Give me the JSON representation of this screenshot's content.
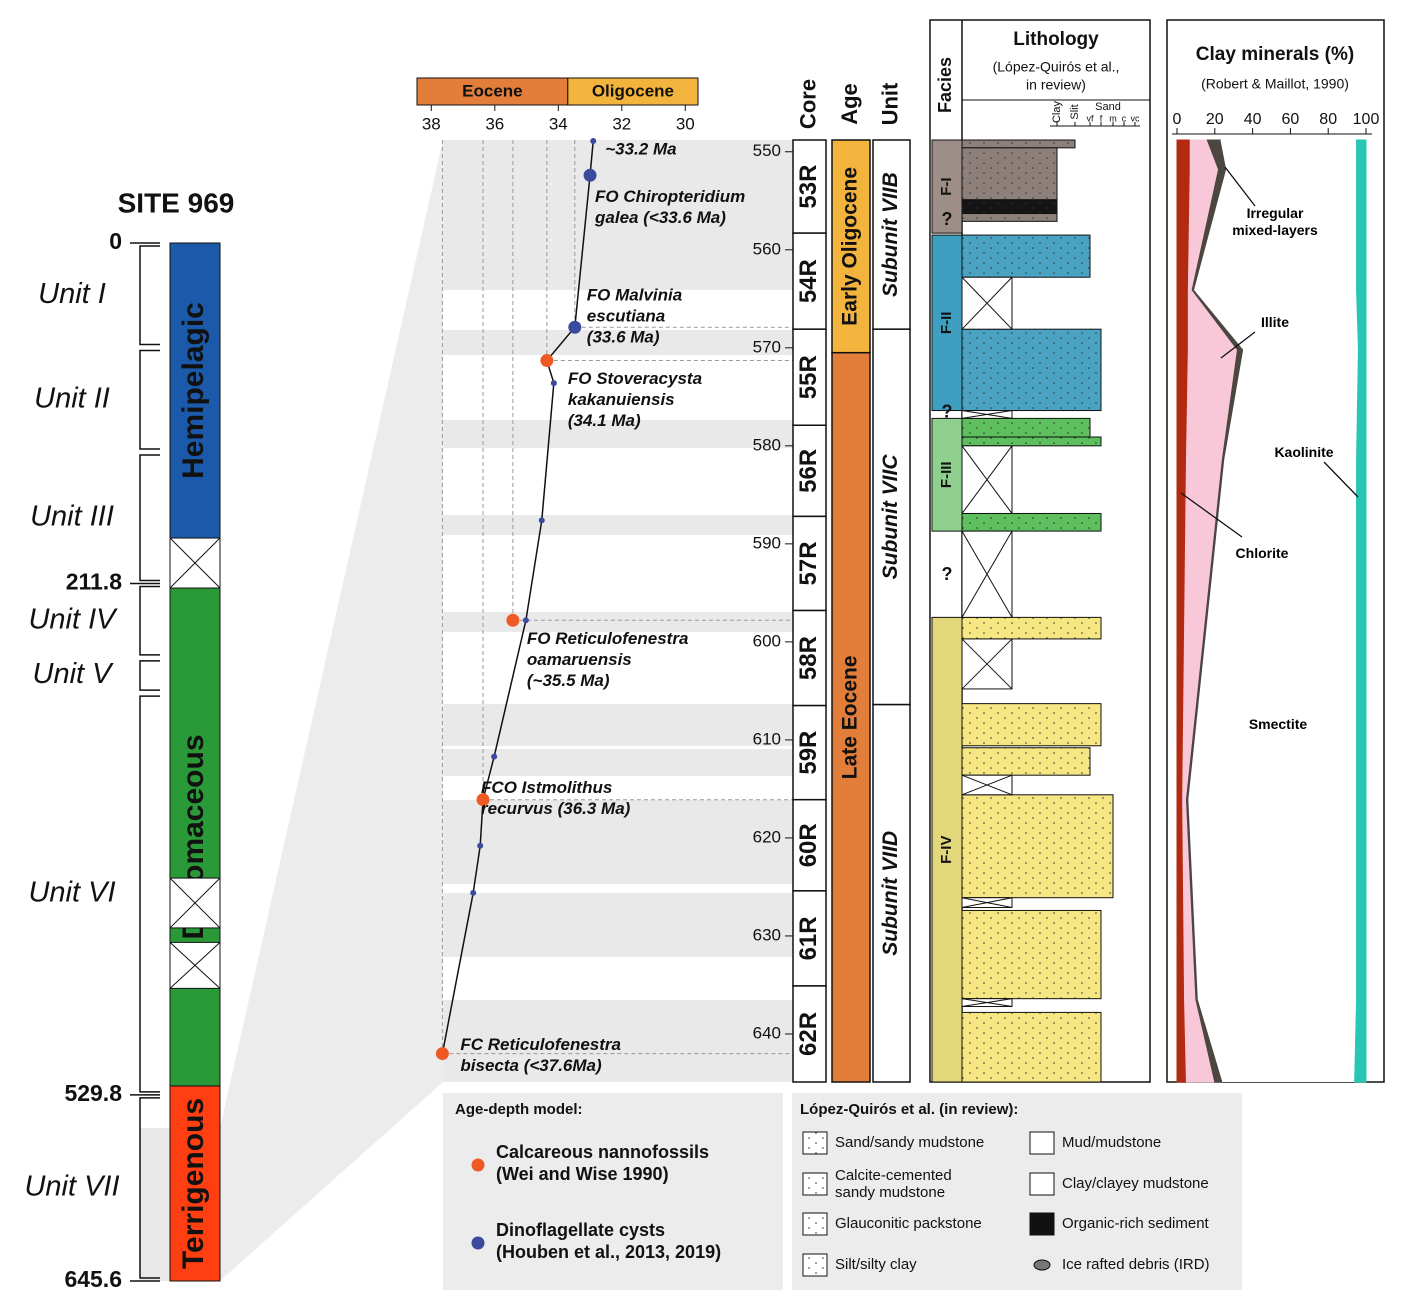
{
  "site": {
    "title": "SITE 969",
    "ylim": [
      0,
      645.6
    ],
    "depth_ticks": [
      0,
      211.8,
      529.8,
      645.6
    ],
    "units": [
      {
        "name": "Unit I",
        "top": 0,
        "bottom": 65
      },
      {
        "name": "Unit II",
        "top": 65,
        "bottom": 130
      },
      {
        "name": "Unit III",
        "top": 130,
        "bottom": 211.8
      },
      {
        "name": "Unit IV",
        "top": 211.8,
        "bottom": 258
      },
      {
        "name": "Unit V",
        "top": 258,
        "bottom": 280
      },
      {
        "name": "Unit VI",
        "top": 280,
        "bottom": 529.8
      },
      {
        "name": "Unit VII",
        "top": 529.8,
        "bottom": 645.6
      }
    ],
    "column": [
      {
        "name": "Hemipelagic",
        "top": 0,
        "bottom": 183.5,
        "color": "#1b5aab"
      },
      {
        "name": "Diatomaceous",
        "top": 214.6,
        "bottom": 524.3,
        "color": "#2a9a38"
      },
      {
        "name": "Terrigenous",
        "top": 524.3,
        "bottom": 645.6,
        "color": "#ff3e12"
      }
    ],
    "no_recovery": [
      {
        "top": 183.5,
        "bottom": 214.6
      },
      {
        "top": 395,
        "bottom": 426
      },
      {
        "top": 435,
        "bottom": 463.6
      }
    ]
  },
  "age_depth": {
    "epochs": [
      {
        "name": "Eocene",
        "from": 38.45,
        "to": 33.7,
        "color": "#e27d3a"
      },
      {
        "name": "Oligocene",
        "from": 33.7,
        "to": 29.6,
        "color": "#f3b43e"
      }
    ],
    "xlim": [
      38.45,
      29.6
    ],
    "xticks": [
      38,
      36,
      34,
      32,
      30
    ],
    "datums": [
      {
        "lines": [
          "~33.2 Ma"
        ],
        "age": 32.9,
        "depth": 548.9,
        "color": "#3b4a9c",
        "size": "small"
      },
      {
        "lines": [
          "FO Chiropteridium",
          "galea (<33.6 Ma)"
        ],
        "age": 33.0,
        "depth": 552.4,
        "color": "#3b4a9c",
        "size": "big"
      },
      {
        "lines": [
          "FO Malvinia",
          "escutiana",
          "(33.6 Ma)"
        ],
        "age": 33.48,
        "depth": 567.9,
        "color": "#3b4a9c",
        "size": "big"
      },
      {
        "lines": [
          "FO Stoveracysta",
          "kakanuiensis",
          "(34.1 Ma)"
        ],
        "age": 34.36,
        "depth": 571.3,
        "color": "#ef5a24",
        "size": "big"
      },
      {
        "lines": [
          "FO Reticulofenestra",
          "oamaruensis",
          "(~35.5 Ma)"
        ],
        "age": 35.43,
        "depth": 597.8,
        "color": "#ef5a24",
        "size": "big"
      },
      {
        "lines": [
          "FCO Istmolithus",
          "recurvus (36.3 Ma)"
        ],
        "age": 36.37,
        "depth": 616.1,
        "color": "#ef5a24",
        "size": "big"
      },
      {
        "lines": [
          "FC Reticulofenestra",
          "bisecta (<37.6Ma)"
        ],
        "age": 37.65,
        "depth": 642.0,
        "color": "#ef5a24",
        "size": "big"
      }
    ],
    "points": [
      {
        "age": 34.14,
        "depth": 573.6
      },
      {
        "age": 34.52,
        "depth": 587.6
      },
      {
        "age": 35.02,
        "depth": 597.8
      },
      {
        "age": 36.02,
        "depth": 611.7
      },
      {
        "age": 36.46,
        "depth": 620.8
      },
      {
        "age": 36.68,
        "depth": 625.6
      }
    ],
    "points_color": "#3b4a9c",
    "model_line": {
      "ages": [
        32.9,
        33.0,
        33.48,
        34.36,
        34.14,
        34.52,
        35.02,
        36.02,
        36.37,
        36.46,
        36.68,
        37.65
      ],
      "depths": [
        548.9,
        552.4,
        567.9,
        571.3,
        573.6,
        587.6,
        597.8,
        611.7,
        616.1,
        620.8,
        625.6,
        642.0
      ]
    }
  },
  "core_log": {
    "headers": [
      "Core",
      "Age",
      "Unit"
    ],
    "ylim": [
      548.8,
      644.9
    ],
    "yticks": [
      550,
      560,
      570,
      580,
      590,
      600,
      610,
      620,
      630,
      640
    ],
    "cores": [
      {
        "name": "53R",
        "top": 548.8,
        "bottom": 558.3
      },
      {
        "name": "54R",
        "top": 558.3,
        "bottom": 568.1
      },
      {
        "name": "55R",
        "top": 568.1,
        "bottom": 577.9
      },
      {
        "name": "56R",
        "top": 577.9,
        "bottom": 587.2
      },
      {
        "name": "57R",
        "top": 587.2,
        "bottom": 596.8
      },
      {
        "name": "58R",
        "top": 596.8,
        "bottom": 606.5
      },
      {
        "name": "59R",
        "top": 606.5,
        "bottom": 616.1
      },
      {
        "name": "60R",
        "top": 616.1,
        "bottom": 625.4
      },
      {
        "name": "61R",
        "top": 625.4,
        "bottom": 635.1
      },
      {
        "name": "62R",
        "top": 635.1,
        "bottom": 644.9
      }
    ],
    "ages": [
      {
        "name": "Early Oligocene",
        "top": 548.8,
        "bottom": 570.5,
        "color": "#f3b43e"
      },
      {
        "name": "Late Eocene",
        "top": 570.5,
        "bottom": 644.9,
        "color": "#e27d3a"
      }
    ],
    "units": [
      {
        "name": "Subunit VIIB",
        "top": 548.8,
        "bottom": 568.1
      },
      {
        "name": "Subunit VIIC",
        "top": 568.1,
        "bottom": 606.4
      },
      {
        "name": "Subunit VIID",
        "top": 606.4,
        "bottom": 644.9
      }
    ]
  },
  "lithology": {
    "facies_header": "Facies",
    "title": "Lithology",
    "source_lines": [
      "(López-Quirós et al.,",
      "in review)"
    ],
    "sand_label": "Sand",
    "grain_classes": [
      "Clay",
      "Slit",
      "vf",
      "f",
      "m",
      "c",
      "vc"
    ],
    "lith_colors": {
      "mud": "#8d807a",
      "organic": "#151515",
      "silt": "#4aa3c3",
      "glauconitic": "#5dbf5d",
      "sand": "#f6e782"
    },
    "facies": [
      {
        "label": "F-I",
        "top": 548.8,
        "bottom": 558.3,
        "color": "#9d8e87"
      },
      {
        "label": "F-II",
        "top": 558.5,
        "bottom": 576.4,
        "color": "#3f9fc0"
      },
      {
        "label": "F-III",
        "top": 577.2,
        "bottom": 588.7,
        "color": "#8fd08f"
      },
      {
        "label": "F-IV",
        "top": 597.5,
        "bottom": 644.9,
        "color": "#e2d77a"
      }
    ],
    "question_marks": [
      {
        "label": "?",
        "depth": 557.0
      },
      {
        "label": "?",
        "depth": 576.6
      },
      {
        "label": "?",
        "depth": 593.2
      }
    ],
    "beds": [
      {
        "top": 548.8,
        "bottom": 549.6,
        "grain": "Slit",
        "lith": "mud"
      },
      {
        "top": 549.6,
        "bottom": 554.9,
        "grain": "Clay",
        "lith": "mud"
      },
      {
        "top": 554.9,
        "bottom": 556.3,
        "grain": "Clay",
        "lith": "organic"
      },
      {
        "top": 556.3,
        "bottom": 557.1,
        "grain": "Clay",
        "lith": "mud"
      },
      {
        "top": 558.5,
        "bottom": 562.8,
        "grain": "vf",
        "lith": "silt"
      },
      {
        "top": 568.1,
        "bottom": 576.4,
        "grain": "f",
        "lith": "silt"
      },
      {
        "top": 577.2,
        "bottom": 579.1,
        "grain": "vf",
        "lith": "glauconitic"
      },
      {
        "top": 579.1,
        "bottom": 580.0,
        "grain": "f",
        "lith": "glauconitic"
      },
      {
        "top": 586.9,
        "bottom": 588.7,
        "grain": "f",
        "lith": "glauconitic"
      },
      {
        "top": 597.5,
        "bottom": 599.7,
        "grain": "f",
        "lith": "sand"
      },
      {
        "top": 606.3,
        "bottom": 610.6,
        "grain": "f",
        "lith": "sand"
      },
      {
        "top": 610.8,
        "bottom": 613.6,
        "grain": "vf",
        "lith": "sand"
      },
      {
        "top": 615.6,
        "bottom": 626.1,
        "grain": "m",
        "lith": "sand"
      },
      {
        "top": 627.4,
        "bottom": 636.4,
        "grain": "f",
        "lith": "sand"
      },
      {
        "top": 637.8,
        "bottom": 644.9,
        "grain": "f",
        "lith": "sand"
      }
    ],
    "gaps": [
      {
        "top": 562.8,
        "bottom": 568.1
      },
      {
        "top": 576.4,
        "bottom": 577.2
      },
      {
        "top": 580.0,
        "bottom": 586.9
      },
      {
        "top": 588.7,
        "bottom": 597.5
      },
      {
        "top": 599.7,
        "bottom": 604.8
      },
      {
        "top": 613.6,
        "bottom": 615.6
      },
      {
        "top": 626.1,
        "bottom": 627.1
      },
      {
        "top": 636.4,
        "bottom": 637.2
      }
    ]
  },
  "clay": {
    "title": "Clay minerals (%)",
    "source": "(Robert & Maillot, 1990)",
    "xlim": [
      0,
      100
    ],
    "xticks": [
      0,
      20,
      40,
      60,
      80,
      100
    ],
    "depths": [
      548.8,
      551.8,
      564.1,
      570.2,
      581.4,
      616.1,
      636.5,
      644.9
    ],
    "series": [
      {
        "name": "Chlorite",
        "color": "#b22a10",
        "values": [
          7,
          7,
          6,
          6,
          5,
          3,
          4,
          5
        ]
      },
      {
        "name": "Illite",
        "color": "#f9c8d8",
        "values": [
          9,
          15,
          2,
          26,
          19,
          2,
          6,
          15
        ]
      },
      {
        "name": "Irregular mixed-layers",
        "color": "#4c4640",
        "values": [
          7,
          4,
          1,
          3,
          1,
          1,
          1,
          4
        ]
      },
      {
        "name": "Smectite",
        "color": "#ffffff",
        "values": [
          72,
          69,
          86,
          61,
          70,
          89,
          84,
          70
        ]
      },
      {
        "name": "Kaolinite",
        "color": "#27c6b5",
        "values": [
          5,
          5,
          5,
          4,
          5,
          5,
          5,
          6
        ]
      }
    ]
  },
  "legend_age": {
    "title": "Age-depth model:",
    "items": [
      {
        "lines": [
          "Calcareous nannofossils",
          "(Wei and Wise 1990)"
        ],
        "color": "#ef5a24"
      },
      {
        "lines": [
          "Dinoflagellate cysts",
          "(Houben et al., 2013, 2019)"
        ],
        "color": "#3b4a9c"
      }
    ]
  },
  "legend_lith": {
    "title": "López-Quirós et al. (in review):",
    "items": [
      {
        "lines": [
          "Sand/sandy mudstone"
        ]
      },
      {
        "lines": [
          "Calcite-cemented",
          "sandy mudstone"
        ]
      },
      {
        "lines": [
          "Glauconitic packstone"
        ]
      },
      {
        "lines": [
          "Silt/silty clay"
        ]
      },
      {
        "lines": [
          "Mud/mudstone"
        ]
      },
      {
        "lines": [
          "Clay/clayey mudstone"
        ]
      },
      {
        "lines": [
          "Organic-rich sediment"
        ]
      },
      {
        "lines": [
          "Ice rafted debris (IRD)"
        ]
      }
    ]
  }
}
